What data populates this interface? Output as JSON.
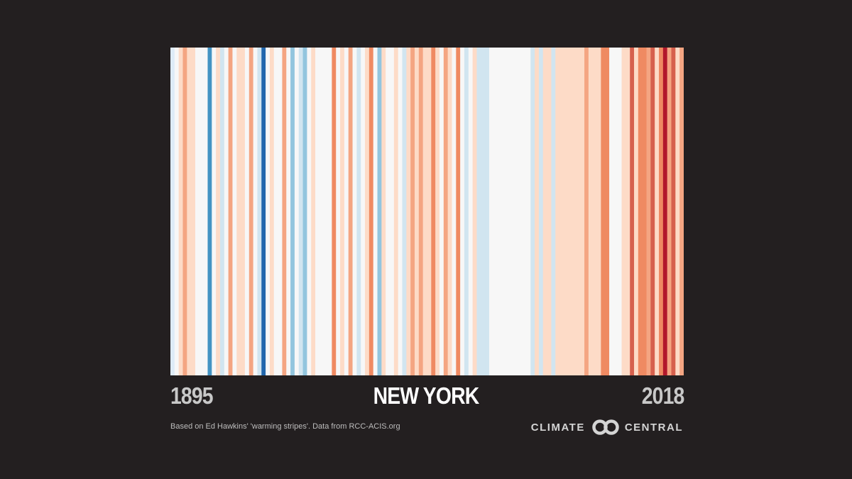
{
  "chart_data": {
    "type": "heatmap",
    "title": "NEW YORK",
    "x_start": "1895",
    "x_end": "2018",
    "years": [
      1895,
      1896,
      1897,
      1898,
      1899,
      1900,
      1901,
      1902,
      1903,
      1904,
      1905,
      1906,
      1907,
      1908,
      1909,
      1910,
      1911,
      1912,
      1913,
      1914,
      1915,
      1916,
      1917,
      1918,
      1919,
      1920,
      1921,
      1922,
      1923,
      1924,
      1925,
      1926,
      1927,
      1928,
      1929,
      1930,
      1931,
      1932,
      1933,
      1934,
      1935,
      1936,
      1937,
      1938,
      1939,
      1940,
      1941,
      1942,
      1943,
      1944,
      1945,
      1946,
      1947,
      1948,
      1949,
      1950,
      1951,
      1952,
      1953,
      1954,
      1955,
      1956,
      1957,
      1958,
      1959,
      1960,
      1961,
      1962,
      1963,
      1964,
      1965,
      1966,
      1967,
      1968,
      1969,
      1970,
      1971,
      1972,
      1973,
      1974,
      1975,
      1976,
      1977,
      1978,
      1979,
      1980,
      1981,
      1982,
      1983,
      1984,
      1985,
      1986,
      1987,
      1988,
      1989,
      1990,
      1991,
      1992,
      1993,
      1994,
      1995,
      1996,
      1997,
      1998,
      1999,
      2000,
      2001,
      2002,
      2003,
      2004,
      2005,
      2006,
      2007,
      2008,
      2009,
      2010,
      2011,
      2012,
      2013,
      2014,
      2015,
      2016,
      2017,
      2018
    ],
    "stripe_colors": [
      "#deebf7",
      "#f7f7f7",
      "#fddbc7",
      "#f4a582",
      "#fddbc7",
      "#fddbc7",
      "#f7f7f7",
      "#f7f7f7",
      "#f7f7f7",
      "#4393c3",
      "#f7f7f7",
      "#fddbc7",
      "#d1e5f0",
      "#f7f7f7",
      "#f4a582",
      "#f7f7f7",
      "#fddbc7",
      "#fddbc7",
      "#f7f7f7",
      "#f4a582",
      "#f7f7f7",
      "#d1e5f0",
      "#2166ac",
      "#f7f7f7",
      "#fddbc7",
      "#f7f7f7",
      "#f7f7f7",
      "#f4a582",
      "#f7f7f7",
      "#92c5de",
      "#f7f7f7",
      "#d1e5f0",
      "#92c5de",
      "#f7f7f7",
      "#fddbc7",
      "#f7f7f7",
      "#f7f7f7",
      "#f7f7f7",
      "#f7f7f7",
      "#ef8a62",
      "#f7f7f7",
      "#fddbc7",
      "#f7f7f7",
      "#f4a582",
      "#f7f7f7",
      "#d1e5f0",
      "#f7f7f7",
      "#fddbc7",
      "#ef8a62",
      "#f7f7f7",
      "#92c5de",
      "#fddbc7",
      "#f7f7f7",
      "#f7f7f7",
      "#fddbc7",
      "#f7f7f7",
      "#d1e5f0",
      "#fddbc7",
      "#f4a582",
      "#fddbc7",
      "#f4a582",
      "#fddbc7",
      "#fddbc7",
      "#ef8a62",
      "#fddbc7",
      "#f7f7f7",
      "#f4a582",
      "#fddbc7",
      "#f7f7f7",
      "#ef8a62",
      "#f7f7f7",
      "#d1e5f0",
      "#f7f7f7",
      "#fddbc7",
      "#d1e5f0",
      "#d1e5f0",
      "#d1e5f0",
      "#f7f7f7",
      "#f7f7f7",
      "#f7f7f7",
      "#f7f7f7",
      "#f7f7f7",
      "#f7f7f7",
      "#f7f7f7",
      "#f7f7f7",
      "#f7f7f7",
      "#f7f7f7",
      "#d1e5f0",
      "#fddbc7",
      "#d1e5f0",
      "#fddbc7",
      "#fddbc7",
      "#d1e5f0",
      "#fddbc7",
      "#fddbc7",
      "#fddbc7",
      "#fddbc7",
      "#fddbc7",
      "#fddbc7",
      "#fddbc7",
      "#f4a582",
      "#fddbc7",
      "#fddbc7",
      "#fddbc7",
      "#ef8a62",
      "#ef8a62",
      "#f7f7f7",
      "#f7f7f7",
      "#f7f7f7",
      "#fddbc7",
      "#fddbc7",
      "#d6604d",
      "#fddbc7",
      "#ef8a62",
      "#ef8a62",
      "#f4a582",
      "#d6604d",
      "#fddbc7",
      "#ef8a62",
      "#b2182b",
      "#f4a582",
      "#d6604d",
      "#fddbc7",
      "#f4a582"
    ]
  },
  "footer": {
    "credit": "Based on Ed Hawkins' 'warming stripes'. Data from RCC-ACIS.org",
    "brand_left": "CLIMATE",
    "brand_right": "CENTRAL",
    "brand_logo_icon": "double-ring-logo-icon"
  },
  "colors": {
    "background": "#231f20",
    "label_gray": "#c8c8c8",
    "title_white": "#ffffff"
  }
}
